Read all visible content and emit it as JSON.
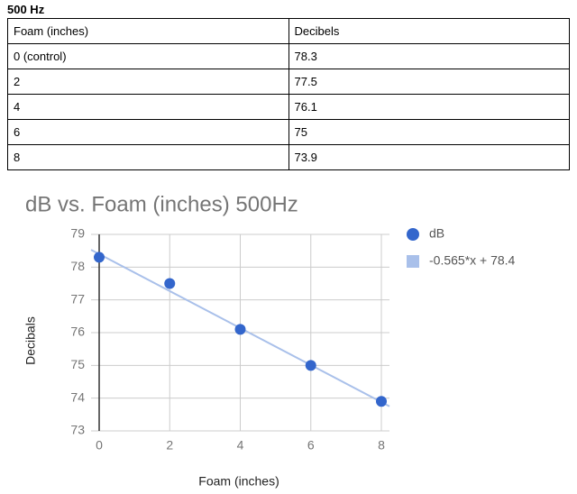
{
  "heading": "500 Hz",
  "table": {
    "header": [
      "Foam (inches)",
      "Decibels"
    ],
    "rows": [
      [
        "0 (control)",
        "78.3"
      ],
      [
        "2",
        "77.5"
      ],
      [
        "4",
        "76.1"
      ],
      [
        "6",
        "75"
      ],
      [
        "8",
        "73.9"
      ]
    ]
  },
  "chart_data": {
    "type": "scatter",
    "title": "dB vs. Foam (inches) 500Hz",
    "x_label": "Foam (inches)",
    "y_label": "Decibals",
    "xlim": [
      -0.23,
      8.23
    ],
    "xticks": [
      0,
      2,
      4,
      6,
      8
    ],
    "ylim": [
      73,
      79
    ],
    "yticks": [
      73,
      74,
      75,
      76,
      77,
      78,
      79
    ],
    "grid": true,
    "legend": "right",
    "series": [
      {
        "name": "dB",
        "color": "#3366cc",
        "x": [
          0,
          2,
          4,
          6,
          8
        ],
        "values": [
          78.3,
          77.5,
          76.1,
          75,
          73.9
        ]
      }
    ],
    "trendline": {
      "name": "-0.565*x + 78.4",
      "color": "#a9c0ea",
      "slope": -0.565,
      "intercept": 78.4
    }
  }
}
